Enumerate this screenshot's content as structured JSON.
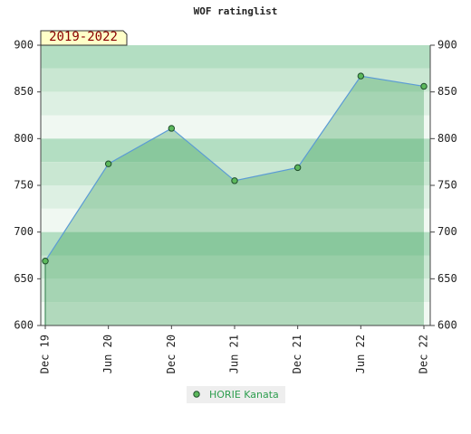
{
  "chart_data": {
    "type": "line",
    "title": "WOF ratinglist",
    "period_label": "2019-2022",
    "categories": [
      "Dec 19",
      "Jun 20",
      "Dec 20",
      "Jun 21",
      "Dec 21",
      "Jun 22",
      "Dec 22"
    ],
    "series": [
      {
        "name": "HORIE Kanata",
        "color": "#5b9bd5",
        "marker_color": "#5cb85c",
        "values": [
          669,
          773,
          811,
          755,
          769,
          867,
          856
        ]
      }
    ],
    "ylim": [
      600,
      900
    ],
    "yticks": [
      600,
      650,
      700,
      750,
      800,
      850,
      900
    ],
    "y2lim": [
      600,
      900
    ],
    "y2ticks": [
      600,
      650,
      700,
      750,
      800,
      850,
      900
    ],
    "area": true
  }
}
